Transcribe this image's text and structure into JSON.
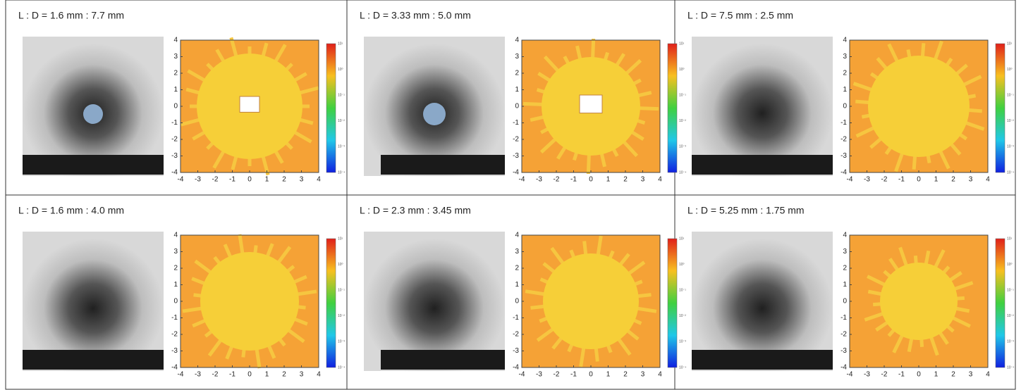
{
  "panels": [
    {
      "label": "L : D = 1.6 mm : 7.7 mm"
    },
    {
      "label": "L : D = 3.33 mm : 5.0 mm"
    },
    {
      "label": "L : D = 7.5 mm : 2.5 mm"
    },
    {
      "label": "L : D = 1.6 mm : 4.0 mm"
    },
    {
      "label": "L : D = 2.3 mm : 3.45 mm"
    },
    {
      "label": "L : D = 5.25 mm : 1.75 mm"
    }
  ],
  "axes": {
    "xlim": [
      -4,
      4
    ],
    "ylim": [
      -4,
      4
    ],
    "xticks": [
      -4,
      -3,
      -2,
      -1,
      0,
      1,
      2,
      3,
      4
    ],
    "yticks": [
      -4,
      -3,
      -2,
      -1,
      0,
      1,
      2,
      3,
      4
    ]
  },
  "colorbar_labels": [
    "10¹",
    "10⁰",
    "10⁻¹",
    "10⁻²",
    "10⁻³",
    "10⁻⁴"
  ]
}
